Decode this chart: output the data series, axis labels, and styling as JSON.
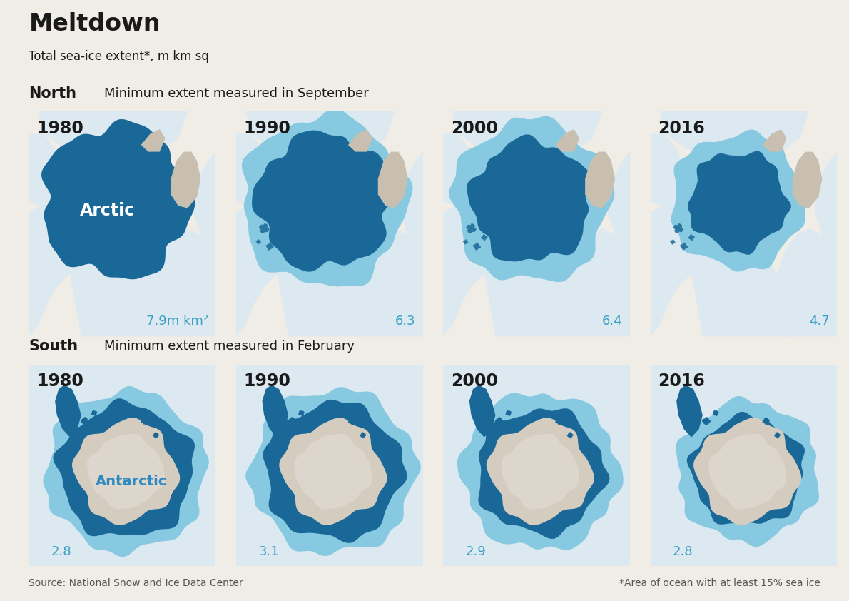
{
  "title": "Meltdown",
  "subtitle": "Total sea-ice extent*, m km sq",
  "north_label": "North",
  "north_sublabel": "Minimum extent measured in September",
  "south_label": "South",
  "south_sublabel": "Minimum extent measured in February",
  "years": [
    "1980",
    "1990",
    "2000",
    "2016"
  ],
  "north_values": [
    "7.9m km²",
    "6.3",
    "6.4",
    "4.7"
  ],
  "south_values": [
    "2.8",
    "3.1",
    "2.9",
    "2.8"
  ],
  "arctic_label": "Arctic",
  "antarctic_label": "Antarctic",
  "source_left": "Source: National Snow and Ice Data Center",
  "source_right": "*Area of ocean with at least 15% sea ice",
  "bg_color": "#f0ece6",
  "land_color": "#c8bfb0",
  "panel_bg": "#c9bfb1",
  "ocean_white": "#dce9f0",
  "ice_dark": "#1a6898",
  "ice_medium": "#2e8bbf",
  "ice_light": "#87c9e0",
  "bar_color": "#1a6898",
  "title_red_bar": "#cc0000",
  "white_color": "#ffffff",
  "text_dark": "#1a1a1a",
  "value_blue": "#3a9fc5",
  "gap_color": "#f0ece6",
  "north_ice_outer_sizes": [
    0.0,
    0.48,
    0.46,
    0.42
  ],
  "north_ice_dark_sizes": [
    0.52,
    0.44,
    0.42,
    0.34
  ],
  "south_ice_outer_sizes": [
    0.0,
    0.42,
    0.4,
    0.36
  ],
  "south_ice_dark_sizes": [
    0.38,
    0.32,
    0.3,
    0.26
  ]
}
